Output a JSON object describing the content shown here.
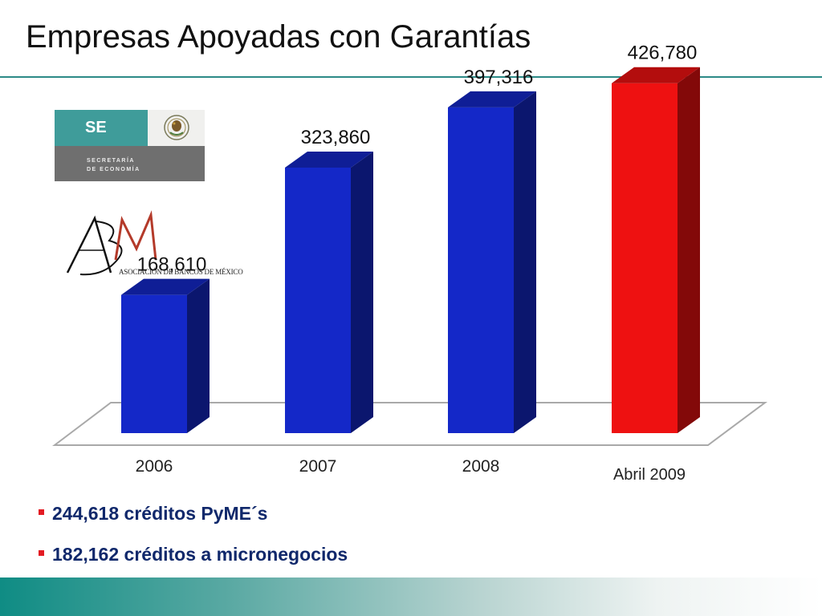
{
  "slide": {
    "title": "Empresas Apoyadas con Garantías"
  },
  "logos": {
    "se": {
      "abbr": "SE",
      "line1": "SECRETARÍA",
      "line2": "DE ECONOMÍA"
    },
    "abm": {
      "initials": "ABM",
      "name": "ASOCIACIÓN DE BANCOS DE MÉXICO"
    }
  },
  "chart_data": {
    "type": "bar",
    "style": "3d",
    "categories": [
      "2006",
      "2007",
      "2008",
      "Abril  2009"
    ],
    "values": [
      168610,
      323860,
      397316,
      426780
    ],
    "value_labels": [
      "168,610",
      "323,860",
      "397,316",
      "426,780"
    ],
    "colors": [
      "#1428c8",
      "#1428c8",
      "#1428c8",
      "#ee1111"
    ],
    "ylim": [
      0,
      450000
    ],
    "grid": false,
    "legend": "none"
  },
  "bullets": [
    "244,618 créditos PyME´s",
    "182,162 créditos a micronegocios"
  ]
}
